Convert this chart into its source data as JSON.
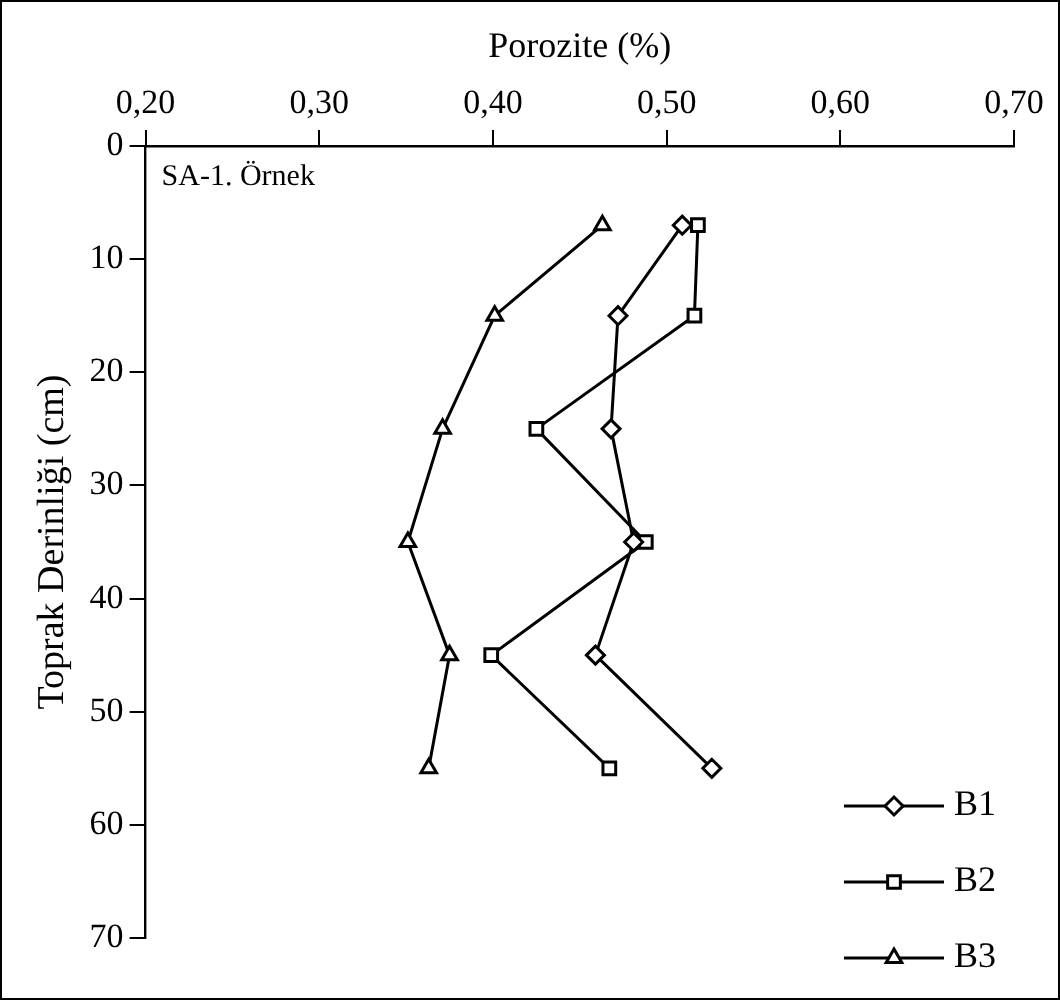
{
  "chart_data": {
    "type": "line",
    "xlabel": "Porozite (%)",
    "ylabel": "Toprak Derinliği (cm)",
    "annotations": [
      "SA-1. Örnek"
    ],
    "xlim": [
      0.2,
      0.7
    ],
    "xticks": [
      {
        "value": 0.2,
        "label": "0,20"
      },
      {
        "value": 0.3,
        "label": "0,30"
      },
      {
        "value": 0.4,
        "label": "0,40"
      },
      {
        "value": 0.5,
        "label": "0,50"
      },
      {
        "value": 0.6,
        "label": "0,60"
      },
      {
        "value": 0.7,
        "label": "0,70"
      }
    ],
    "ylim": [
      70,
      0
    ],
    "yticks": [
      0,
      10,
      20,
      30,
      40,
      50,
      60,
      70
    ],
    "grid": false,
    "legend": "bottom right",
    "line_style": "solid",
    "series": [
      {
        "name": "B1",
        "color": "#000000",
        "marker": "diamond",
        "x": [
          0.509,
          0.472,
          0.468,
          0.481,
          0.459,
          0.526
        ],
        "values": [
          7,
          15,
          25,
          35,
          45,
          55
        ]
      },
      {
        "name": "B2",
        "color": "#000000",
        "marker": "square",
        "x": [
          0.518,
          0.516,
          0.425,
          0.488,
          0.399,
          0.467
        ],
        "values": [
          7,
          15,
          25,
          35,
          45,
          55
        ]
      },
      {
        "name": "B3",
        "color": "#000000",
        "marker": "triangle",
        "x": [
          0.463,
          0.401,
          0.371,
          0.351,
          0.375,
          0.363
        ],
        "values": [
          7,
          15,
          25,
          35,
          45,
          55
        ]
      }
    ]
  }
}
